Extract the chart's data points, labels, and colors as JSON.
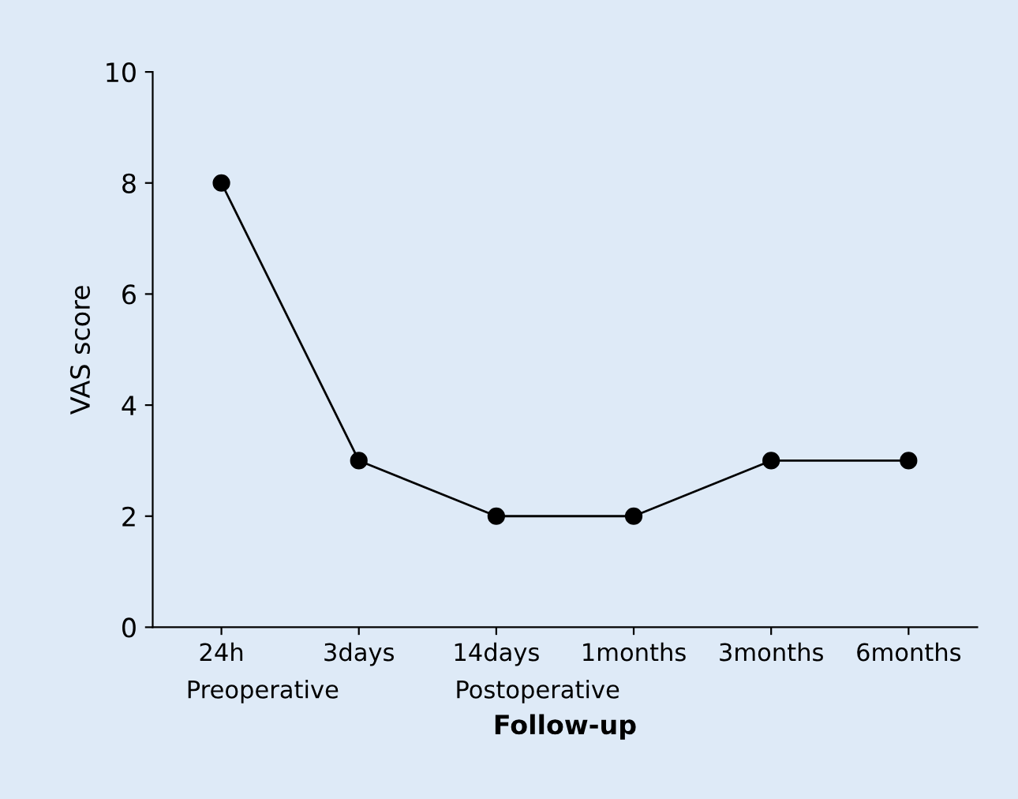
{
  "chart_data": {
    "type": "line",
    "xlabel": "Follow-up",
    "ylabel": "VAS score",
    "categories": [
      "24h",
      "3days",
      "14days",
      "1months",
      "3months",
      "6months"
    ],
    "series": [
      {
        "color": "#000000",
        "values": [
          8,
          3,
          2,
          2,
          3,
          3
        ]
      }
    ],
    "ylim": [
      0,
      10
    ],
    "yticks": [
      0,
      2,
      4,
      6,
      8,
      10
    ],
    "grid": false,
    "legend": false,
    "marker": "circle",
    "line_style": "solid",
    "annotations": [
      "Preoperative",
      "Postoperative"
    ]
  }
}
